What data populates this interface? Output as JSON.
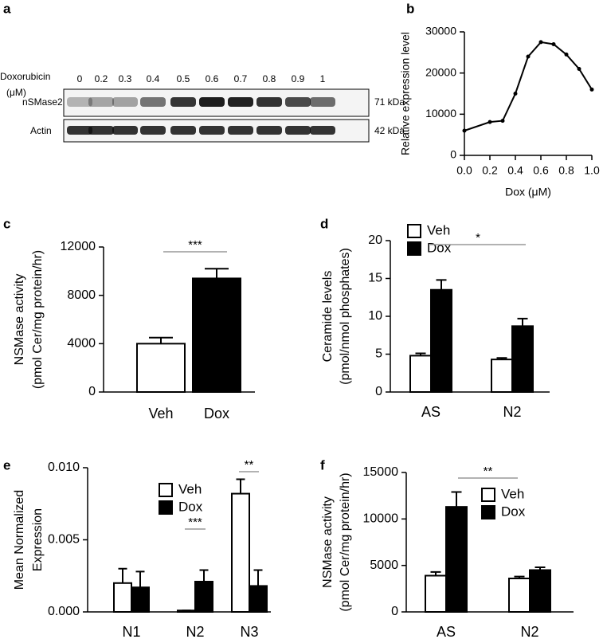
{
  "blot": {
    "panel": "a",
    "row_title": "Doxorubicin",
    "row_unit": "(μM)",
    "lanes": [
      "0",
      "0.2",
      "0.3",
      "0.4",
      "0.5",
      "0.6",
      "0.7",
      "0.8",
      "0.9",
      "1"
    ],
    "proteins": [
      {
        "name": "nSMase2",
        "size": "71 kDa"
      },
      {
        "name": "Actin",
        "size": "42 kDa"
      }
    ]
  },
  "chart_data": [
    {
      "type": "line",
      "panel": "b",
      "ylabel": "Relative expression level",
      "xlabel": "Dox (μM)",
      "x": [
        0,
        0.2,
        0.3,
        0.4,
        0.5,
        0.6,
        0.7,
        0.8,
        0.9,
        1.0
      ],
      "values": [
        6000,
        8100,
        8400,
        15000,
        24000,
        27500,
        27000,
        24500,
        21000,
        16000
      ],
      "color": "#000000",
      "xlim": [
        0,
        1
      ],
      "xticks": [
        {
          "value": 0,
          "label": "0.0"
        },
        {
          "value": 0.2,
          "label": "0.2"
        },
        {
          "value": 0.4,
          "label": "0.4"
        },
        {
          "value": 0.6,
          "label": "0.6"
        },
        {
          "value": 0.8,
          "label": "0.8"
        },
        {
          "value": 1,
          "label": "1.0"
        }
      ],
      "ylim": [
        0,
        30000
      ],
      "yticks": [
        0,
        10000,
        20000,
        30000
      ]
    },
    {
      "type": "bar",
      "panel": "c",
      "ylabel": [
        "NSMase activity",
        "(pmol Cer/mg protein/hr)"
      ],
      "categories": [
        "Veh",
        "Dox"
      ],
      "values": [
        4000,
        9400
      ],
      "errors": [
        500,
        800
      ],
      "colors": [
        "#ffffff",
        "#000000"
      ],
      "ylim": [
        0,
        12000
      ],
      "yticks": [
        0,
        4000,
        8000,
        12000
      ],
      "annotations": [
        "***"
      ]
    },
    {
      "type": "grouped_bar",
      "panel": "d",
      "ylabel": [
        "Ceramide levels",
        "(pmol/nmol phosphates)"
      ],
      "categories": [
        "AS",
        "N2"
      ],
      "legend": "upper left",
      "series": [
        {
          "name": "Veh",
          "color": "#ffffff",
          "values": [
            4.8,
            4.3
          ],
          "errors": [
            0.3,
            0.2
          ]
        },
        {
          "name": "Dox",
          "color": "#000000",
          "values": [
            13.5,
            8.7
          ],
          "errors": [
            1.3,
            1.0
          ]
        }
      ],
      "ylim": [
        0,
        20
      ],
      "yticks": [
        0,
        5,
        10,
        15,
        20
      ],
      "annotations": [
        "*"
      ]
    },
    {
      "type": "grouped_bar",
      "panel": "e",
      "ylabel": [
        "Mean Normalized",
        "Expression"
      ],
      "categories": [
        "N1",
        "N2",
        "N3"
      ],
      "legend": "upper center",
      "series": [
        {
          "name": "Veh",
          "color": "#ffffff",
          "values": [
            0.002,
            0.0001,
            0.0082
          ],
          "errors": [
            0.001,
            0,
            0.001
          ]
        },
        {
          "name": "Dox",
          "color": "#000000",
          "values": [
            0.0017,
            0.0021,
            0.0018
          ],
          "errors": [
            0.0011,
            0.0008,
            0.0011
          ]
        }
      ],
      "ylim": [
        0,
        0.01
      ],
      "yticks": [
        {
          "value": 0,
          "label": "0.000"
        },
        0.005,
        {
          "value": 0.01,
          "label": "0.010"
        }
      ],
      "annotations": [
        "***",
        "**"
      ]
    },
    {
      "type": "grouped_bar",
      "panel": "f",
      "ylabel": [
        "NSMase activity",
        "(pmol Cer/mg protein/hr)"
      ],
      "categories": [
        "AS",
        "N2"
      ],
      "legend": "upper right",
      "series": [
        {
          "name": "Veh",
          "color": "#ffffff",
          "values": [
            3900,
            3600
          ],
          "errors": [
            400,
            200
          ]
        },
        {
          "name": "Dox",
          "color": "#000000",
          "values": [
            11300,
            4500
          ],
          "errors": [
            1600,
            300
          ]
        }
      ],
      "ylim": [
        0,
        15000
      ],
      "yticks": [
        0,
        5000,
        10000,
        15000
      ],
      "annotations": [
        "**"
      ]
    }
  ]
}
